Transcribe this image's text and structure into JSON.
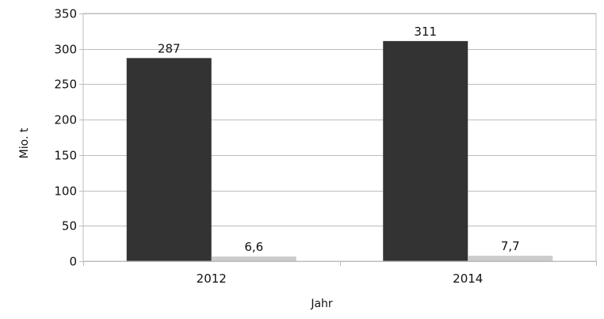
{
  "chart_data": {
    "type": "bar",
    "title": "",
    "xlabel": "Jahr",
    "ylabel": "Mio. t",
    "categories": [
      "2012",
      "2014"
    ],
    "ylim": [
      0,
      350
    ],
    "ytick_step": 50,
    "grid": true,
    "legend": "none",
    "series": [
      {
        "values": [
          287,
          311
        ],
        "labels": [
          "287",
          "311"
        ],
        "color": "#333333"
      },
      {
        "values": [
          6.6,
          7.7
        ],
        "labels": [
          "6,6",
          "7,7"
        ],
        "color": "#cccccc"
      }
    ]
  }
}
